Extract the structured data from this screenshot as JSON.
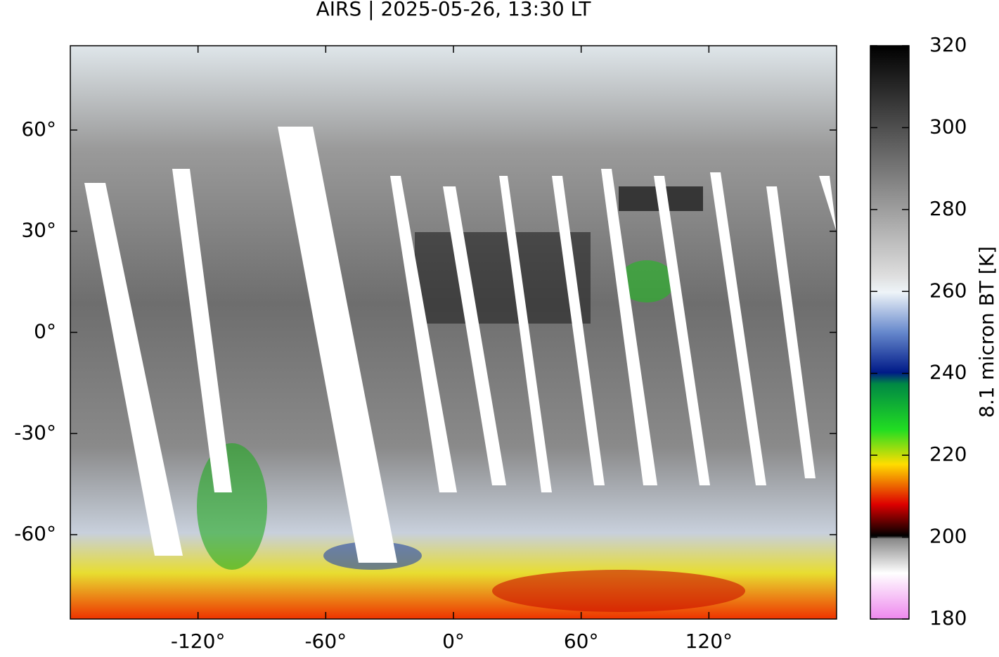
{
  "chart_data": {
    "type": "map",
    "title": "AIRS | 2025-05-26, 13:30 LT",
    "xlim": [
      -180,
      180
    ],
    "ylim": [
      -85,
      85
    ],
    "xticks": [
      {
        "value": -120,
        "label": "-120°"
      },
      {
        "value": -60,
        "label": "-60°"
      },
      {
        "value": 0,
        "label": "0°"
      },
      {
        "value": 60,
        "label": "60°"
      },
      {
        "value": 120,
        "label": "120°"
      }
    ],
    "yticks": [
      {
        "value": -60,
        "label": "-60°"
      },
      {
        "value": -30,
        "label": "-30°"
      },
      {
        "value": 0,
        "label": "0°"
      },
      {
        "value": 30,
        "label": "30°"
      },
      {
        "value": 60,
        "label": "60°"
      }
    ],
    "colorbar": {
      "label": "8.1 micron BT [K]",
      "lim": [
        180,
        320
      ],
      "ticks": [
        180,
        200,
        220,
        240,
        260,
        280,
        300,
        320
      ]
    }
  }
}
